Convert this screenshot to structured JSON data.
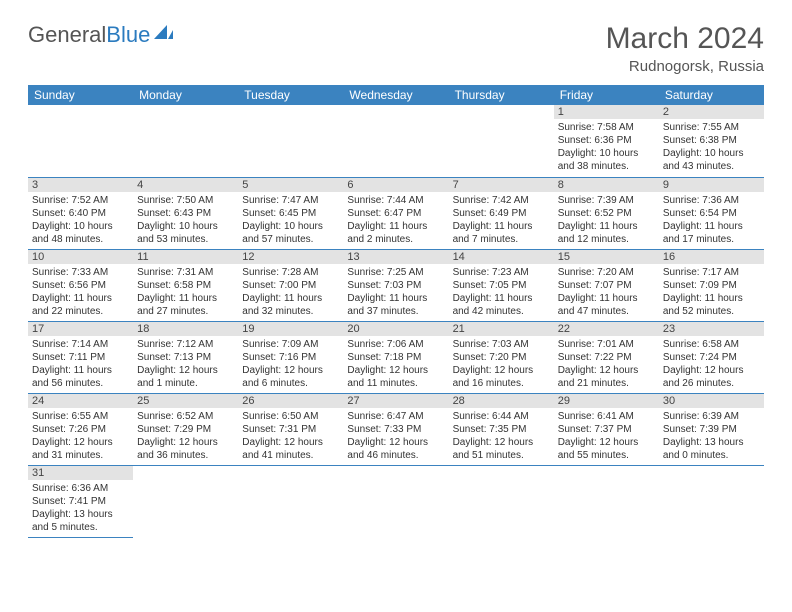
{
  "logo": {
    "text1": "General",
    "text2": "Blue"
  },
  "title": "March 2024",
  "location": "Rudnogorsk, Russia",
  "header_bg": "#3b83c0",
  "border_color": "#3b83c0",
  "daynum_bg": "#e3e3e3",
  "weekdays": [
    "Sunday",
    "Monday",
    "Tuesday",
    "Wednesday",
    "Thursday",
    "Friday",
    "Saturday"
  ],
  "leading_blanks": 5,
  "days": [
    {
      "n": "1",
      "sr": "7:58 AM",
      "ss": "6:36 PM",
      "dl": "10 hours and 38 minutes."
    },
    {
      "n": "2",
      "sr": "7:55 AM",
      "ss": "6:38 PM",
      "dl": "10 hours and 43 minutes."
    },
    {
      "n": "3",
      "sr": "7:52 AM",
      "ss": "6:40 PM",
      "dl": "10 hours and 48 minutes."
    },
    {
      "n": "4",
      "sr": "7:50 AM",
      "ss": "6:43 PM",
      "dl": "10 hours and 53 minutes."
    },
    {
      "n": "5",
      "sr": "7:47 AM",
      "ss": "6:45 PM",
      "dl": "10 hours and 57 minutes."
    },
    {
      "n": "6",
      "sr": "7:44 AM",
      "ss": "6:47 PM",
      "dl": "11 hours and 2 minutes."
    },
    {
      "n": "7",
      "sr": "7:42 AM",
      "ss": "6:49 PM",
      "dl": "11 hours and 7 minutes."
    },
    {
      "n": "8",
      "sr": "7:39 AM",
      "ss": "6:52 PM",
      "dl": "11 hours and 12 minutes."
    },
    {
      "n": "9",
      "sr": "7:36 AM",
      "ss": "6:54 PM",
      "dl": "11 hours and 17 minutes."
    },
    {
      "n": "10",
      "sr": "7:33 AM",
      "ss": "6:56 PM",
      "dl": "11 hours and 22 minutes."
    },
    {
      "n": "11",
      "sr": "7:31 AM",
      "ss": "6:58 PM",
      "dl": "11 hours and 27 minutes."
    },
    {
      "n": "12",
      "sr": "7:28 AM",
      "ss": "7:00 PM",
      "dl": "11 hours and 32 minutes."
    },
    {
      "n": "13",
      "sr": "7:25 AM",
      "ss": "7:03 PM",
      "dl": "11 hours and 37 minutes."
    },
    {
      "n": "14",
      "sr": "7:23 AM",
      "ss": "7:05 PM",
      "dl": "11 hours and 42 minutes."
    },
    {
      "n": "15",
      "sr": "7:20 AM",
      "ss": "7:07 PM",
      "dl": "11 hours and 47 minutes."
    },
    {
      "n": "16",
      "sr": "7:17 AM",
      "ss": "7:09 PM",
      "dl": "11 hours and 52 minutes."
    },
    {
      "n": "17",
      "sr": "7:14 AM",
      "ss": "7:11 PM",
      "dl": "11 hours and 56 minutes."
    },
    {
      "n": "18",
      "sr": "7:12 AM",
      "ss": "7:13 PM",
      "dl": "12 hours and 1 minute."
    },
    {
      "n": "19",
      "sr": "7:09 AM",
      "ss": "7:16 PM",
      "dl": "12 hours and 6 minutes."
    },
    {
      "n": "20",
      "sr": "7:06 AM",
      "ss": "7:18 PM",
      "dl": "12 hours and 11 minutes."
    },
    {
      "n": "21",
      "sr": "7:03 AM",
      "ss": "7:20 PM",
      "dl": "12 hours and 16 minutes."
    },
    {
      "n": "22",
      "sr": "7:01 AM",
      "ss": "7:22 PM",
      "dl": "12 hours and 21 minutes."
    },
    {
      "n": "23",
      "sr": "6:58 AM",
      "ss": "7:24 PM",
      "dl": "12 hours and 26 minutes."
    },
    {
      "n": "24",
      "sr": "6:55 AM",
      "ss": "7:26 PM",
      "dl": "12 hours and 31 minutes."
    },
    {
      "n": "25",
      "sr": "6:52 AM",
      "ss": "7:29 PM",
      "dl": "12 hours and 36 minutes."
    },
    {
      "n": "26",
      "sr": "6:50 AM",
      "ss": "7:31 PM",
      "dl": "12 hours and 41 minutes."
    },
    {
      "n": "27",
      "sr": "6:47 AM",
      "ss": "7:33 PM",
      "dl": "12 hours and 46 minutes."
    },
    {
      "n": "28",
      "sr": "6:44 AM",
      "ss": "7:35 PM",
      "dl": "12 hours and 51 minutes."
    },
    {
      "n": "29",
      "sr": "6:41 AM",
      "ss": "7:37 PM",
      "dl": "12 hours and 55 minutes."
    },
    {
      "n": "30",
      "sr": "6:39 AM",
      "ss": "7:39 PM",
      "dl": "13 hours and 0 minutes."
    },
    {
      "n": "31",
      "sr": "6:36 AM",
      "ss": "7:41 PM",
      "dl": "13 hours and 5 minutes."
    }
  ],
  "labels": {
    "sunrise": "Sunrise: ",
    "sunset": "Sunset: ",
    "daylight": "Daylight: "
  }
}
